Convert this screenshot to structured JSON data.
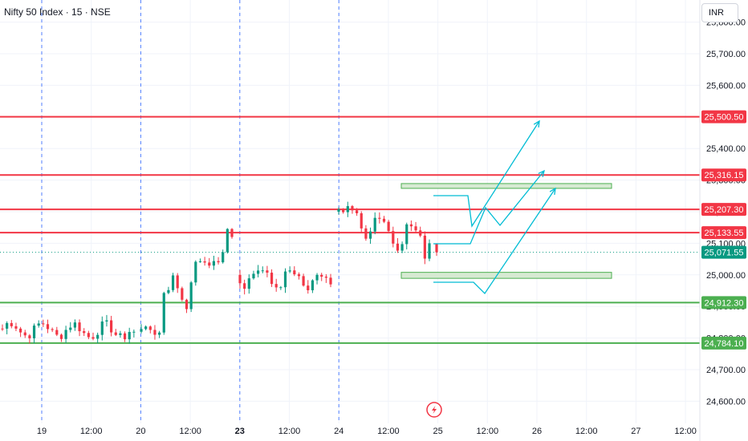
{
  "header": {
    "title": "Nifty 50 Index · 15 · NSE",
    "currency": "INR"
  },
  "colors": {
    "up": "#089981",
    "down": "#f23645",
    "resistance": "#f23645",
    "support": "#4caf50",
    "projection": "#00bcd4",
    "zone_fill": "#d7ead3",
    "zone_stroke": "#4caf50",
    "session": "#2962ff",
    "last_price": "#089981"
  },
  "chart_data": {
    "type": "candlestick",
    "ylim": [
      24530,
      25870
    ],
    "y_ticks": [
      {
        "value": 24600,
        "label": "24,600.00"
      },
      {
        "value": 24700,
        "label": "24,700.00"
      },
      {
        "value": 24800,
        "label": "24,800.00"
      },
      {
        "value": 24900,
        "label": "24,900.00"
      },
      {
        "value": 25000,
        "label": "25,000.00"
      },
      {
        "value": 25100,
        "label": "25,100.00"
      },
      {
        "value": 25200,
        "label": "25,200.00"
      },
      {
        "value": 25300,
        "label": "25,300.00"
      },
      {
        "value": 25400,
        "label": "25,400.00"
      },
      {
        "value": 25500,
        "label": "25,500.00"
      },
      {
        "value": 25600,
        "label": "25,600.00"
      },
      {
        "value": 25700,
        "label": "25,700.00"
      },
      {
        "value": 25800,
        "label": "25,800.00"
      }
    ],
    "x_ticks": [
      {
        "label": "19",
        "bold": false
      },
      {
        "label": "12:00",
        "bold": false
      },
      {
        "label": "20",
        "bold": false
      },
      {
        "label": "12:00",
        "bold": false
      },
      {
        "label": "23",
        "bold": true
      },
      {
        "label": "12:00",
        "bold": false
      },
      {
        "label": "24",
        "bold": false
      },
      {
        "label": "12:00",
        "bold": false
      },
      {
        "label": "25",
        "bold": false
      },
      {
        "label": "12:00",
        "bold": false
      },
      {
        "label": "26",
        "bold": false
      },
      {
        "label": "12:00",
        "bold": false
      },
      {
        "label": "27",
        "bold": false
      },
      {
        "label": "12:00",
        "bold": false
      }
    ],
    "horizontal_levels": [
      {
        "value": 25500.5,
        "label": "25,500.50",
        "kind": "resistance"
      },
      {
        "value": 25316.15,
        "label": "25,316.15",
        "kind": "resistance"
      },
      {
        "value": 25207.3,
        "label": "25,207.30",
        "kind": "resistance"
      },
      {
        "value": 25133.55,
        "label": "25,133.55",
        "kind": "resistance"
      },
      {
        "value": 24912.3,
        "label": "24,912.30",
        "kind": "support"
      },
      {
        "value": 24784.1,
        "label": "24,784.10",
        "kind": "support"
      }
    ],
    "last_price": {
      "value": 25071.55,
      "label": "25,071.55"
    },
    "zones": [
      {
        "top": 25289,
        "bottom": 25278
      },
      {
        "top": 25008,
        "bottom": 24989
      }
    ],
    "sessions": [
      {
        "day": "19",
        "open": 24830,
        "close": 24820,
        "high": 24900,
        "low": 24730,
        "bias": -1
      },
      {
        "day": "20",
        "open": 24820,
        "close": 25120,
        "high": 25148,
        "low": 24730,
        "bias": 1
      },
      {
        "day": "23",
        "open": 25000,
        "close": 24970,
        "high": 25040,
        "low": 24830,
        "bias": 0
      },
      {
        "day": "24",
        "open": 25200,
        "close": 25100,
        "high": 25320,
        "low": 25020,
        "bias": 0
      },
      {
        "day": "25",
        "open": 25100,
        "close": 25071.55,
        "high": 25090,
        "low": 25000,
        "bias": 0
      }
    ]
  }
}
